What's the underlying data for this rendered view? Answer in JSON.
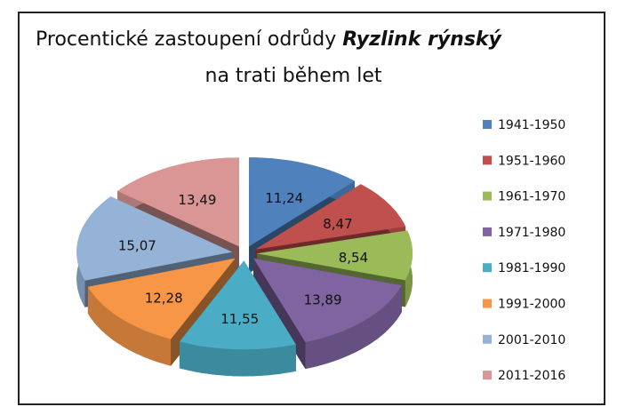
{
  "chart_data": {
    "type": "pie3d",
    "title": {
      "text": "Procentické zastoupení odrůdy",
      "emphasis": "Ryzlink rýnský",
      "line2": "na trati během let"
    },
    "categories": [
      "1941-1950",
      "1951-1960",
      "1961-1970",
      "1971-1980",
      "1981-1990",
      "1991-2000",
      "2001-2010",
      "2011-2016"
    ],
    "values": [
      11.24,
      8.47,
      8.54,
      13.89,
      11.55,
      12.28,
      15.07,
      13.49
    ],
    "value_labels": [
      "11,24",
      "8,47",
      "8,54",
      "13,89",
      "11,55",
      "12,28",
      "15,07",
      "13,49"
    ],
    "colors": [
      "#4f81bd",
      "#c0504d",
      "#9bbb59",
      "#8064a2",
      "#4bacc6",
      "#f79646",
      "#95b3d7",
      "#d99694"
    ],
    "legend": "right"
  }
}
